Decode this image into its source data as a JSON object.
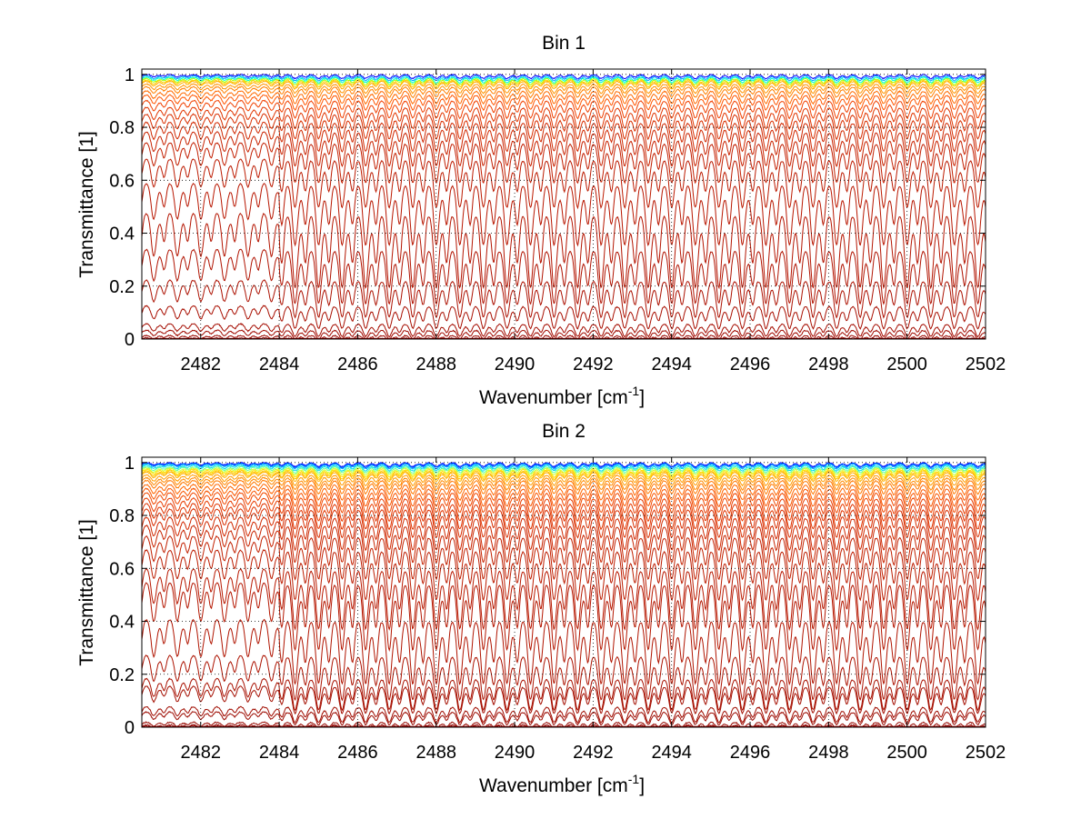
{
  "chart_data": [
    {
      "type": "line",
      "title": "Bin 1",
      "xlabel": "Wavenumber [cm",
      "xlabel_sup": "-1",
      "xlabel_tail": "]",
      "ylabel": "Transmittance [1]",
      "xlim": [
        2480.5,
        2502
      ],
      "ylim": [
        0,
        1.02
      ],
      "xticks": [
        2482,
        2484,
        2486,
        2488,
        2490,
        2492,
        2494,
        2496,
        2498,
        2500,
        2502
      ],
      "yticks": [
        0,
        0.2,
        0.4,
        0.6,
        0.8,
        1
      ],
      "grid": true,
      "line_spacing_cm1": 0.6,
      "series_baselines": [
        1.0,
        0.995,
        0.99,
        0.985,
        0.98,
        0.975,
        0.965,
        0.955,
        0.94,
        0.925,
        0.905,
        0.88,
        0.855,
        0.825,
        0.79,
        0.75,
        0.69,
        0.6,
        0.49,
        0.35,
        0.23,
        0.13,
        0.06,
        0.035,
        0.015,
        0.005
      ],
      "series_colors": [
        "#0000ff",
        "#00aaff",
        "#00ffcc",
        "#aaff00",
        "#ffd000",
        "#ffb000",
        "#ff9500",
        "#ff8000",
        "#ff6a00",
        "#ff5500",
        "#f04000",
        "#e03500",
        "#d82e00",
        "#d02800",
        "#c82200",
        "#c21e00",
        "#bc1a00",
        "#b81600",
        "#b41400",
        "#b01200",
        "#ac1000",
        "#a80e00",
        "#a40c00",
        "#a00a00",
        "#9a0800",
        "#900000"
      ]
    },
    {
      "type": "line",
      "title": "Bin 2",
      "xlabel": "Wavenumber [cm",
      "xlabel_sup": "-1",
      "xlabel_tail": "]",
      "ylabel": "Transmittance [1]",
      "xlim": [
        2480.5,
        2502
      ],
      "ylim": [
        0,
        1.02
      ],
      "xticks": [
        2482,
        2484,
        2486,
        2488,
        2490,
        2492,
        2494,
        2496,
        2498,
        2500,
        2502
      ],
      "yticks": [
        0,
        0.2,
        0.4,
        0.6,
        0.8,
        1
      ],
      "grid": true,
      "line_spacing_cm1": 0.6,
      "series_baselines": [
        1.0,
        0.998,
        0.995,
        0.99,
        0.985,
        0.98,
        0.975,
        0.97,
        0.965,
        0.955,
        0.945,
        0.935,
        0.92,
        0.905,
        0.89,
        0.87,
        0.85,
        0.83,
        0.8,
        0.77,
        0.73,
        0.68,
        0.61,
        0.56,
        0.42,
        0.28,
        0.19,
        0.16,
        0.08,
        0.06,
        0.02,
        0.01,
        0.005
      ],
      "series_colors": [
        "#0000ff",
        "#0050ff",
        "#00aaff",
        "#00e0ee",
        "#66ff99",
        "#ccff33",
        "#ffe000",
        "#ffc800",
        "#ffb000",
        "#ff9c00",
        "#ff8a00",
        "#ff7800",
        "#ff6600",
        "#f85500",
        "#f04800",
        "#e83c00",
        "#e03400",
        "#d82e00",
        "#d02800",
        "#c82400",
        "#c22000",
        "#bc1c00",
        "#b81800",
        "#b41600",
        "#b01400",
        "#ac1200",
        "#a81000",
        "#a40e00",
        "#a00c00",
        "#9c0a00",
        "#980800",
        "#940400",
        "#900000"
      ]
    }
  ]
}
